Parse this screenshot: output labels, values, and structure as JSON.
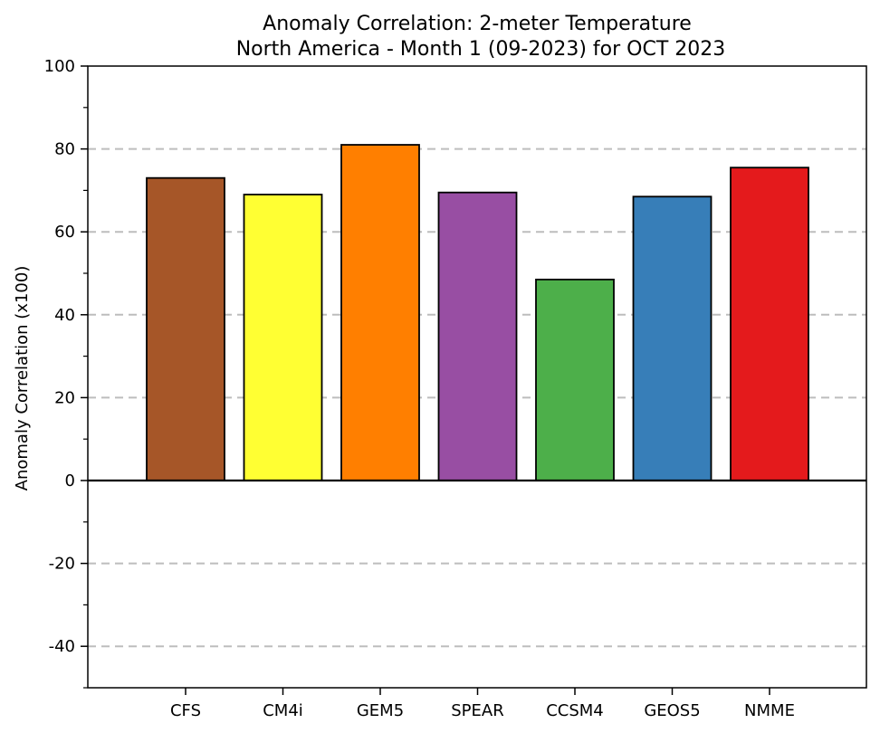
{
  "chart_data": {
    "type": "bar",
    "title": "Anomaly Correlation: 2-meter Temperature",
    "subtitle": "North America - Month 1 (09-2023) for OCT 2023",
    "xlabel": "",
    "ylabel": "Anomaly Correlation (x100)",
    "ylim": [
      -50,
      100
    ],
    "yticks": [
      100,
      80,
      60,
      40,
      20,
      0,
      -20,
      -40
    ],
    "ytick_labels": [
      "100",
      "80",
      "60",
      "40",
      "20",
      "0",
      "-20",
      "-40"
    ],
    "minor_yticks": [
      90,
      70,
      50,
      30,
      10,
      -10,
      -30,
      -50
    ],
    "categories": [
      "CFS",
      "CM4i",
      "GEM5",
      "SPEAR",
      "CCSM4",
      "GEOS5",
      "NMME"
    ],
    "values": [
      73,
      69,
      81,
      69.5,
      48.5,
      68.5,
      75.5
    ],
    "colors": [
      "#a65628",
      "#ffff33",
      "#ff7f00",
      "#984ea3",
      "#4daf4a",
      "#377eb8",
      "#e41a1c"
    ],
    "grid": "dashed horizontal at major y ticks",
    "zero_line": true
  }
}
